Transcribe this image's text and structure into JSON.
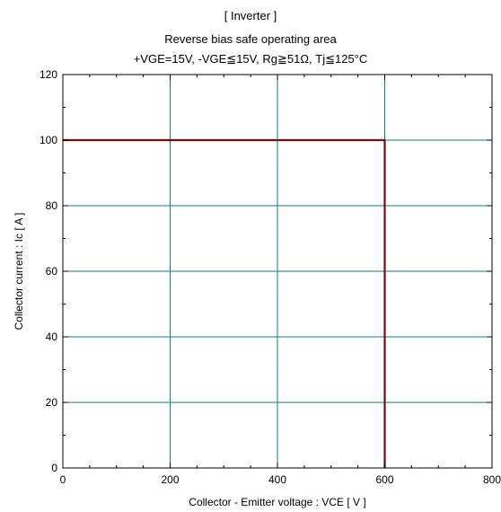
{
  "chart_data": {
    "type": "line",
    "title": "[ Inverter ]",
    "subtitle": "Reverse bias safe operating area",
    "conditions": "+VGE=15V,  -VGE≦15V, Rg≧51Ω,  Tj≦125°C",
    "xlabel": "Collector - Emitter voltage  :  VCE  [ V ]",
    "ylabel": "Collector current  : Ic  [ A ]",
    "xlim": [
      0,
      800
    ],
    "ylim": [
      0,
      120
    ],
    "xticks": [
      0,
      200,
      400,
      600,
      800
    ],
    "yticks": [
      0,
      20,
      40,
      60,
      80,
      100,
      120
    ],
    "grid": true,
    "series": [
      {
        "x": [
          0,
          600,
          600
        ],
        "y": [
          100,
          100,
          0
        ]
      }
    ],
    "colors": {
      "grid": "#0b7f84",
      "series": "#7a0c0c",
      "axes": "#000000"
    }
  }
}
